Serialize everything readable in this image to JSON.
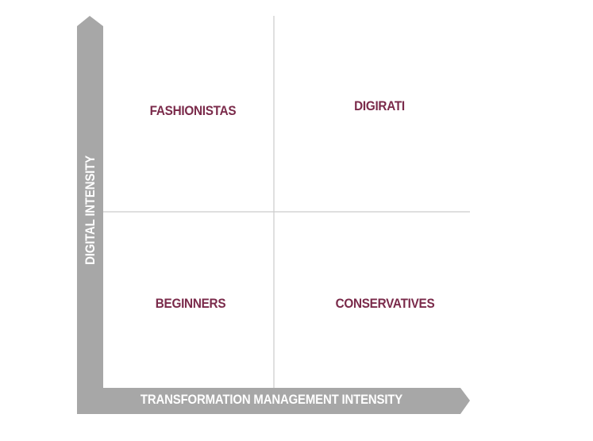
{
  "quadrants": {
    "top_left": "FASHIONISTAS",
    "top_right": "DIGIRATI",
    "bottom_left": "BEGINNERS",
    "bottom_right": "CONSERVATIVES"
  },
  "axes": {
    "x_label": "TRANSFORMATION MANAGEMENT INTENSITY",
    "y_label": "DIGITAL INTENSITY"
  },
  "colors": {
    "axis": "#a7a7a7",
    "grid": "#cccccc",
    "label": "#7a2a4a"
  }
}
